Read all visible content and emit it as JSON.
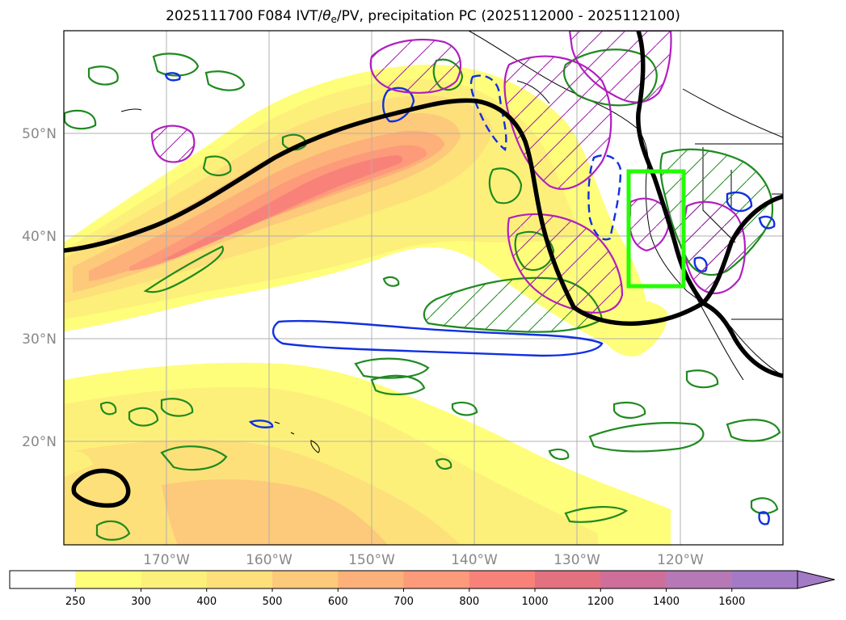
{
  "title": {
    "prefix": "2025111700 F084 IVT/",
    "theta": "θ",
    "theta_sub": "e",
    "suffix": "/PV, precipitation PC (2025112000 - 2025112100)"
  },
  "map": {
    "lat_labels": [
      "50°N",
      "40°N",
      "30°N",
      "20°N"
    ],
    "lon_labels": [
      "170°W",
      "160°W",
      "150°W",
      "140°W",
      "130°W",
      "120°W"
    ],
    "lat_values": [
      50,
      40,
      30,
      20
    ],
    "lon_values": [
      -170,
      -160,
      -150,
      -140,
      -130,
      -120
    ],
    "extent": {
      "lon_min": -180,
      "lon_max": -110,
      "lat_min": 10,
      "lat_max": 60
    },
    "layers": [
      "ivt-fill",
      "theta-e-contour-green",
      "pv-contour-blue",
      "precip-pc-magenta",
      "dynamic-tropopause-black",
      "target-box-green"
    ]
  },
  "colorbar": {
    "ticks": [
      "250",
      "300",
      "400",
      "500",
      "600",
      "700",
      "800",
      "1000",
      "1200",
      "1400",
      "1600"
    ],
    "colors": [
      "#ffffff",
      "#fefe7a",
      "#fdf07a",
      "#fde07a",
      "#fdc97a",
      "#fdb07a",
      "#fd9a7a",
      "#f8827a",
      "#e3717f",
      "#cd6f9a",
      "#b778b6",
      "#a37ac6"
    ]
  }
}
